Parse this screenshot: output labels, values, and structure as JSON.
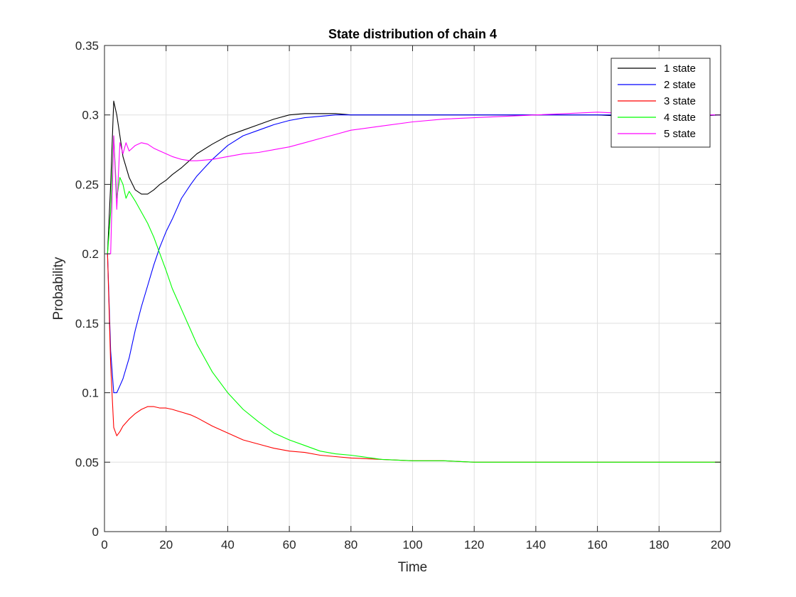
{
  "chart_data": {
    "type": "line",
    "title": "State distribution of chain 4",
    "xlabel": "Time",
    "ylabel": "Probability",
    "xlim": [
      0,
      200
    ],
    "ylim": [
      0,
      0.35
    ],
    "xticks": [
      0,
      20,
      40,
      60,
      80,
      100,
      120,
      140,
      160,
      180,
      200
    ],
    "xtick_labels": [
      "0",
      "20",
      "40",
      "60",
      "80",
      "100",
      "120",
      "140",
      "160",
      "180",
      "200"
    ],
    "yticks": [
      0,
      0.05,
      0.1,
      0.15,
      0.2,
      0.25,
      0.3,
      0.35
    ],
    "ytick_labels": [
      "0",
      "0.05",
      "0.1",
      "0.15",
      "0.2",
      "0.25",
      "0.3",
      "0.35"
    ],
    "grid": true,
    "legend_position": "top-right",
    "series": [
      {
        "name": "1 state",
        "color": "#000000",
        "x": [
          1,
          2,
          3,
          4,
          5,
          6,
          8,
          10,
          12,
          14,
          16,
          18,
          20,
          22,
          25,
          28,
          30,
          35,
          40,
          45,
          50,
          55,
          60,
          65,
          70,
          75,
          80,
          90,
          100,
          110,
          120,
          130,
          140,
          150,
          160,
          170,
          180,
          190,
          200
        ],
        "y": [
          0.2,
          0.25,
          0.31,
          0.3,
          0.285,
          0.27,
          0.255,
          0.246,
          0.243,
          0.243,
          0.246,
          0.25,
          0.253,
          0.257,
          0.262,
          0.268,
          0.272,
          0.279,
          0.285,
          0.289,
          0.293,
          0.297,
          0.3,
          0.301,
          0.301,
          0.301,
          0.3,
          0.3,
          0.3,
          0.3,
          0.3,
          0.3,
          0.3,
          0.3,
          0.3,
          0.299,
          0.3,
          0.299,
          0.3
        ]
      },
      {
        "name": "2 state",
        "color": "#0000ff",
        "x": [
          1,
          2,
          3,
          4,
          5,
          6,
          8,
          10,
          12,
          14,
          16,
          18,
          20,
          22,
          25,
          28,
          30,
          35,
          40,
          45,
          50,
          55,
          60,
          65,
          70,
          75,
          80,
          90,
          100,
          110,
          120,
          130,
          140,
          150,
          160,
          170,
          180,
          190,
          200
        ],
        "y": [
          0.2,
          0.13,
          0.1,
          0.1,
          0.105,
          0.11,
          0.125,
          0.145,
          0.162,
          0.177,
          0.192,
          0.205,
          0.216,
          0.225,
          0.24,
          0.25,
          0.256,
          0.268,
          0.278,
          0.285,
          0.289,
          0.293,
          0.296,
          0.298,
          0.299,
          0.3,
          0.3,
          0.3,
          0.3,
          0.3,
          0.3,
          0.3,
          0.3,
          0.3,
          0.3,
          0.3,
          0.3,
          0.3,
          0.3
        ]
      },
      {
        "name": "3 state",
        "color": "#ff0000",
        "x": [
          1,
          2,
          3,
          4,
          5,
          6,
          8,
          10,
          12,
          14,
          16,
          18,
          20,
          22,
          25,
          28,
          30,
          35,
          40,
          45,
          50,
          55,
          60,
          65,
          70,
          75,
          80,
          90,
          100,
          110,
          120,
          130,
          140,
          150,
          160,
          170,
          180,
          190,
          200
        ],
        "y": [
          0.2,
          0.12,
          0.075,
          0.069,
          0.072,
          0.076,
          0.081,
          0.085,
          0.088,
          0.09,
          0.09,
          0.089,
          0.089,
          0.088,
          0.086,
          0.084,
          0.082,
          0.076,
          0.071,
          0.066,
          0.063,
          0.06,
          0.058,
          0.057,
          0.055,
          0.054,
          0.053,
          0.052,
          0.051,
          0.051,
          0.05,
          0.05,
          0.05,
          0.05,
          0.05,
          0.05,
          0.05,
          0.05,
          0.05
        ]
      },
      {
        "name": "4 state",
        "color": "#00ff00",
        "x": [
          1,
          2,
          3,
          4,
          5,
          6,
          7,
          8,
          10,
          12,
          14,
          16,
          18,
          20,
          22,
          25,
          28,
          30,
          35,
          40,
          45,
          50,
          55,
          60,
          65,
          70,
          75,
          80,
          90,
          100,
          110,
          120,
          130,
          140,
          150,
          160,
          170,
          180,
          190,
          200
        ],
        "y": [
          0.2,
          0.23,
          0.285,
          0.24,
          0.255,
          0.25,
          0.24,
          0.245,
          0.238,
          0.23,
          0.222,
          0.212,
          0.2,
          0.188,
          0.175,
          0.16,
          0.145,
          0.135,
          0.115,
          0.1,
          0.088,
          0.079,
          0.071,
          0.066,
          0.062,
          0.058,
          0.056,
          0.055,
          0.052,
          0.051,
          0.051,
          0.05,
          0.05,
          0.05,
          0.05,
          0.05,
          0.05,
          0.05,
          0.05,
          0.05
        ]
      },
      {
        "name": "5 state",
        "color": "#ff00ff",
        "x": [
          1,
          2,
          3,
          4,
          5,
          6,
          7,
          8,
          10,
          12,
          14,
          16,
          18,
          20,
          22,
          25,
          28,
          30,
          35,
          40,
          45,
          50,
          55,
          60,
          65,
          70,
          75,
          80,
          90,
          100,
          110,
          120,
          130,
          140,
          150,
          160,
          170,
          180,
          190,
          200
        ],
        "y": [
          0.2,
          0.2,
          0.285,
          0.232,
          0.28,
          0.272,
          0.28,
          0.274,
          0.278,
          0.28,
          0.279,
          0.276,
          0.274,
          0.272,
          0.27,
          0.268,
          0.267,
          0.267,
          0.268,
          0.27,
          0.272,
          0.273,
          0.275,
          0.277,
          0.28,
          0.283,
          0.286,
          0.289,
          0.292,
          0.295,
          0.297,
          0.298,
          0.299,
          0.3,
          0.301,
          0.302,
          0.301,
          0.3,
          0.3,
          0.3
        ]
      }
    ]
  }
}
